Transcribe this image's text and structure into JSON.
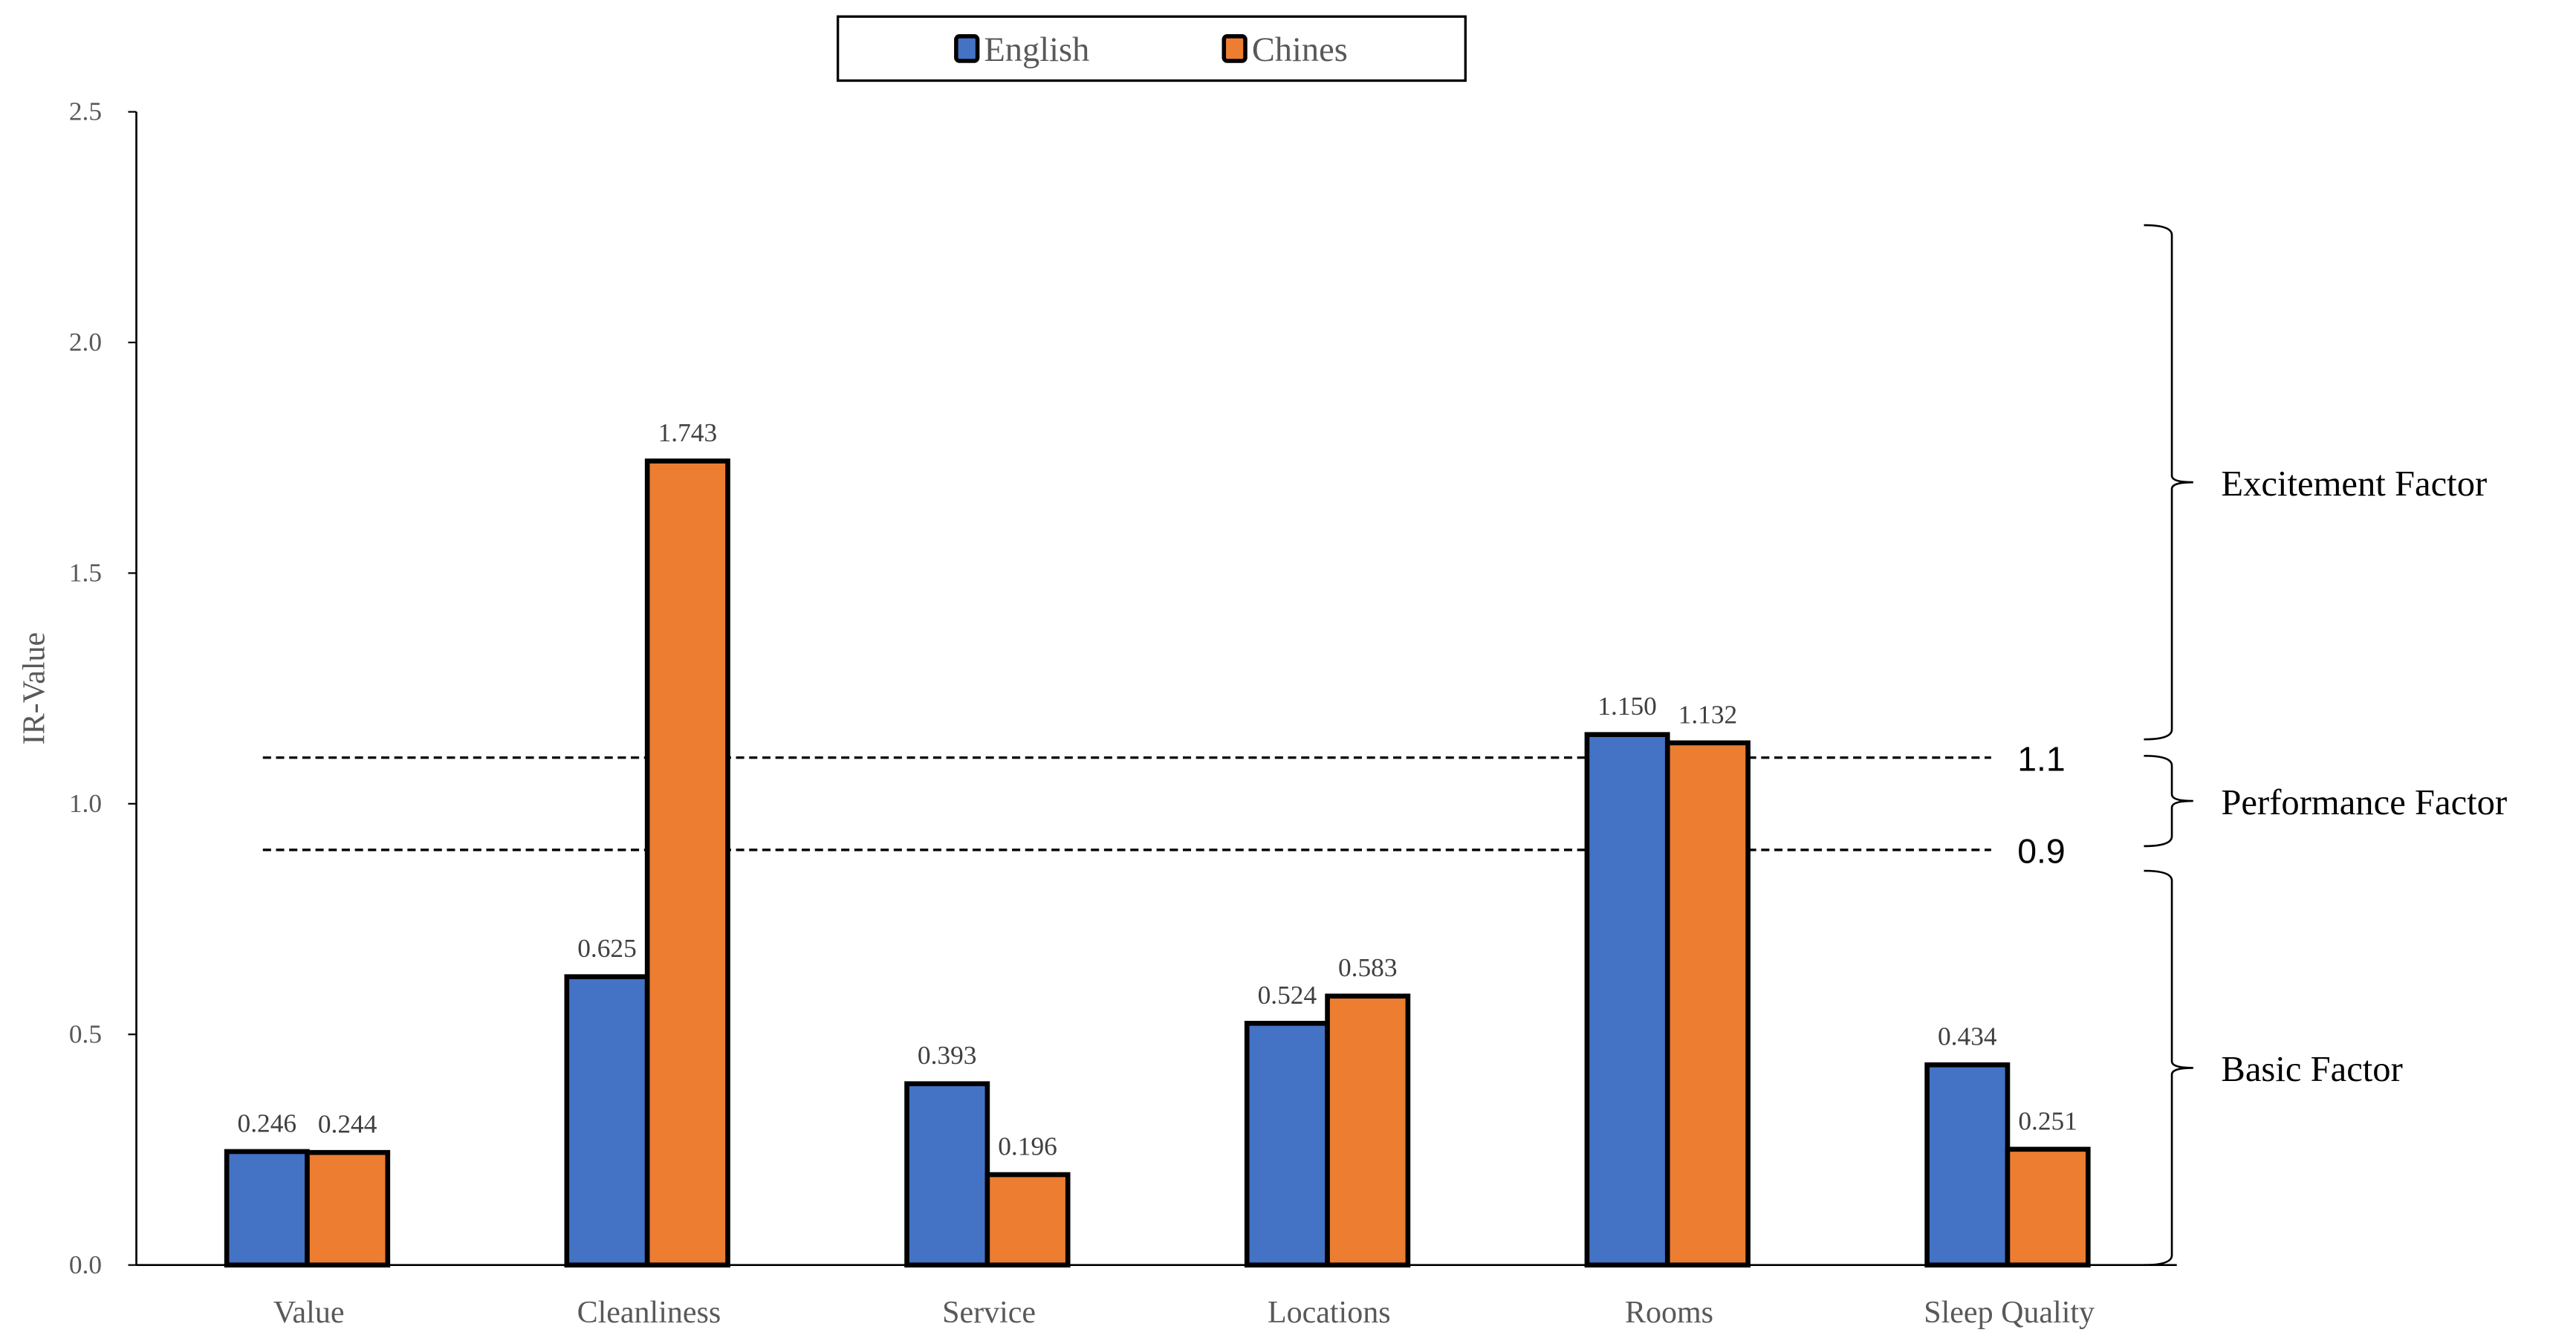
{
  "chart_data": {
    "type": "bar",
    "title": "",
    "xlabel": "",
    "ylabel": "IR-Value",
    "ylim": [
      0,
      2.5
    ],
    "yticks": [
      "0.0",
      "0.5",
      "1.0",
      "1.5",
      "2.0",
      "2.5"
    ],
    "categories": [
      "Value",
      "Cleanliness",
      "Service",
      "Locations",
      "Rooms",
      "Sleep Quality"
    ],
    "series": [
      {
        "name": "English",
        "color": "#4472C4",
        "values": [
          0.246,
          0.625,
          0.393,
          0.524,
          1.15,
          0.434
        ],
        "labels": [
          "0.246",
          "0.625",
          "0.393",
          "0.524",
          "1.150",
          "0.434"
        ]
      },
      {
        "name": "Chines",
        "color": "#ED7D31",
        "values": [
          0.244,
          1.743,
          0.196,
          0.583,
          1.132,
          0.251
        ],
        "labels": [
          "0.244",
          "1.743",
          "0.196",
          "0.583",
          "1.132",
          "0.251"
        ]
      }
    ],
    "legend_position": "top-center",
    "grid": false,
    "reference_lines": [
      {
        "value": 1.1,
        "label": "1.1",
        "style": "dashed"
      },
      {
        "value": 0.9,
        "label": "0.9",
        "style": "dashed"
      }
    ],
    "annotations": [
      {
        "label": "Excitement Factor",
        "range": [
          1.1,
          2.25
        ]
      },
      {
        "label": "Performance Factor",
        "range": [
          0.9,
          1.1
        ]
      },
      {
        "label": "Basic Factor",
        "range": [
          0,
          0.85
        ]
      }
    ]
  }
}
